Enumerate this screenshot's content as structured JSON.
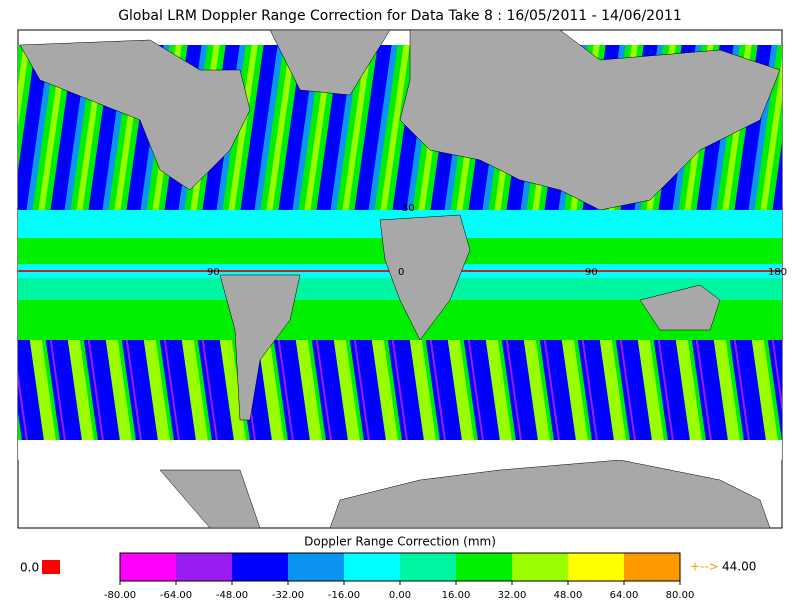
{
  "header": {
    "title": "Global LRM Doppler Range Correction for Data Take 8 : 16/05/2011 - 14/06/2011"
  },
  "map": {
    "grid_labels": [
      "30",
      "90",
      "0",
      "90",
      "180"
    ]
  },
  "colorbar": {
    "label": "Doppler Range Correction (mm)",
    "ticks": [
      {
        "value": -80,
        "label": "-80.00"
      },
      {
        "value": -64,
        "label": "-64.00"
      },
      {
        "value": -48,
        "label": "-48.00"
      },
      {
        "value": -32,
        "label": "-32.00"
      },
      {
        "value": -16,
        "label": "-16.00"
      },
      {
        "value": 0,
        "label": "0.00"
      },
      {
        "value": 16,
        "label": "16.00"
      },
      {
        "value": 32,
        "label": "32.00"
      },
      {
        "value": 48,
        "label": "48.00"
      },
      {
        "value": 64,
        "label": "64.00"
      },
      {
        "value": 80,
        "label": "80.00"
      }
    ],
    "colors": [
      "#ff00ff",
      "#9a1cf0",
      "#0000ff",
      "#0a96f0",
      "#00ffff",
      "#00f5a0",
      "#00ee00",
      "#99ff00",
      "#ffff00",
      "#ff9900"
    ]
  },
  "legend": {
    "missing_label": "0.0",
    "missing_color": "#ff0000",
    "overflow_arrow": "+-->",
    "overflow_value": "44.00"
  }
}
